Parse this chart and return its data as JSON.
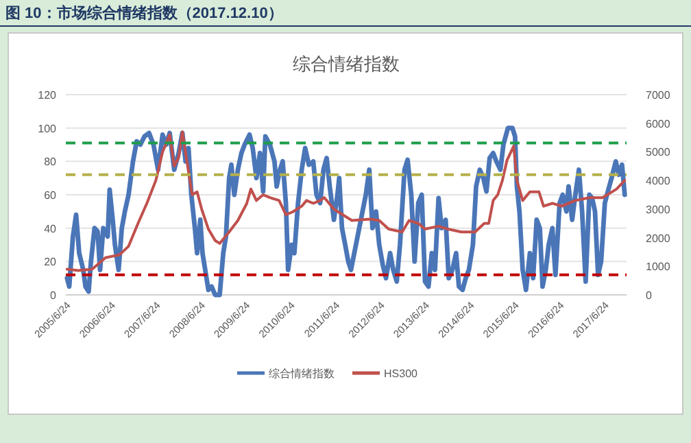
{
  "chart_data": {
    "type": "line",
    "title": "图 10：市场综合情绪指数（2017.12.10）",
    "subtitle": "综合情绪指数",
    "xlim": [
      "2005-06-14",
      "2017-12-14"
    ],
    "xticks": [
      {
        "value": "2005-06-24",
        "label": "2005/6/24"
      },
      {
        "value": "2006-06-24",
        "label": "2006/6/24"
      },
      {
        "value": "2007-06-24",
        "label": "2007/6/24"
      },
      {
        "value": "2008-06-24",
        "label": "2008/6/24"
      },
      {
        "value": "2009-06-24",
        "label": "2009/6/24"
      },
      {
        "value": "2010-06-24",
        "label": "2010/6/24"
      },
      {
        "value": "2011-06-24",
        "label": "2011/6/24"
      },
      {
        "value": "2012-06-24",
        "label": "2012/6/24"
      },
      {
        "value": "2013-06-24",
        "label": "2013/6/24"
      },
      {
        "value": "2014-06-24",
        "label": "2014/6/24"
      },
      {
        "value": "2015-06-24",
        "label": "2015/6/24"
      },
      {
        "value": "2016-06-24",
        "label": "2016/6/24"
      },
      {
        "value": "2017-06-24",
        "label": "2017/6/24"
      }
    ],
    "ylim": [
      0,
      120
    ],
    "yticks": [
      0,
      20,
      40,
      60,
      80,
      100,
      120
    ],
    "y2lim": [
      0,
      7000
    ],
    "y2ticks": [
      0,
      1000,
      2000,
      3000,
      4000,
      5000,
      6000,
      7000
    ],
    "grid": "y",
    "legend": "bottom",
    "ref_lines": [
      {
        "axis": "y",
        "value": 91,
        "color": "#1e9e4a",
        "line_style": "dashed"
      },
      {
        "axis": "y",
        "value": 72,
        "color": "#b5b04a",
        "line_style": "dashed"
      },
      {
        "axis": "y",
        "value": 12,
        "color": "#c00000",
        "line_style": "dashed"
      }
    ],
    "series": [
      {
        "name": "综合情绪指数",
        "color": "#4a76b8",
        "axis": "y",
        "x": [
          "2005-06-24",
          "2005-07-12",
          "2005-08-11",
          "2005-09-06",
          "2005-10-01",
          "2005-11-03",
          "2005-11-21",
          "2005-12-17",
          "2006-01-05",
          "2006-02-03",
          "2006-02-28",
          "2006-03-20",
          "2006-04-15",
          "2006-05-21",
          "2006-06-06",
          "2006-07-01",
          "2006-07-19",
          "2006-08-18",
          "2006-09-13",
          "2006-10-08",
          "2006-11-07",
          "2006-12-13",
          "2007-01-12",
          "2007-02-11",
          "2007-03-17",
          "2007-04-23",
          "2007-05-29",
          "2007-07-05",
          "2007-08-11",
          "2007-09-09",
          "2007-10-08",
          "2007-11-14",
          "2007-12-20",
          "2008-01-19",
          "2008-02-14",
          "2008-03-09",
          "2008-04-01",
          "2008-04-30",
          "2008-05-18",
          "2008-06-13",
          "2008-07-01",
          "2008-07-23",
          "2008-08-18",
          "2008-09-13",
          "2008-10-12",
          "2008-11-18",
          "2008-12-17",
          "2009-01-08",
          "2009-02-03",
          "2009-02-21",
          "2009-03-17",
          "2009-04-15",
          "2009-05-14",
          "2009-06-09",
          "2009-07-19",
          "2009-08-14",
          "2009-09-13",
          "2009-10-12",
          "2009-11-07",
          "2009-11-25",
          "2010-01-01",
          "2010-02-07",
          "2010-02-25",
          "2010-03-24",
          "2010-04-15",
          "2010-05-11",
          "2010-05-29",
          "2010-06-27",
          "2010-07-19",
          "2010-08-18",
          "2010-09-17",
          "2010-10-15",
          "2010-11-14",
          "2010-12-20",
          "2011-01-15",
          "2011-02-14",
          "2011-03-13",
          "2011-04-08",
          "2011-05-03",
          "2011-06-06",
          "2011-07-05",
          "2011-07-19",
          "2011-08-11",
          "2011-09-06",
          "2011-10-01",
          "2011-10-23",
          "2012-02-21",
          "2012-03-20",
          "2012-04-15",
          "2012-05-14",
          "2012-06-09",
          "2012-07-08",
          "2012-08-03",
          "2012-09-06",
          "2012-10-01",
          "2012-10-30",
          "2012-11-25",
          "2013-01-01",
          "2013-01-26",
          "2013-02-25",
          "2013-03-24",
          "2013-04-23",
          "2013-05-21",
          "2013-06-17",
          "2013-07-15",
          "2013-08-11",
          "2013-09-06",
          "2013-10-05",
          "2013-10-30",
          "2013-12-02",
          "2013-12-27",
          "2014-01-26",
          "2014-02-25",
          "2014-03-20",
          "2014-04-19",
          "2014-05-14",
          "2014-06-09",
          "2014-07-12",
          "2014-08-07",
          "2014-09-06",
          "2014-10-05",
          "2014-10-30",
          "2014-11-25",
          "2014-12-24",
          "2015-01-19",
          "2015-02-21",
          "2015-03-17",
          "2015-04-23",
          "2015-05-29",
          "2015-06-20",
          "2015-07-05",
          "2015-07-26",
          "2015-08-21",
          "2015-09-17",
          "2015-10-19",
          "2015-11-14",
          "2015-12-13",
          "2016-01-08",
          "2016-01-30",
          "2016-02-25",
          "2016-03-20",
          "2016-04-19",
          "2016-05-14",
          "2016-06-17",
          "2016-07-12",
          "2016-08-11",
          "2016-08-29",
          "2016-09-27",
          "2016-10-23",
          "2016-11-21",
          "2016-12-17",
          "2017-01-15",
          "2017-02-14",
          "2017-03-09",
          "2017-04-01",
          "2017-04-26",
          "2017-05-21",
          "2017-06-20",
          "2017-07-15",
          "2017-08-14",
          "2017-09-17",
          "2017-10-12",
          "2017-11-07",
          "2017-11-29"
        ],
        "values": [
          10,
          5,
          35,
          48,
          25,
          15,
          5,
          2,
          20,
          40,
          38,
          15,
          40,
          35,
          63,
          45,
          30,
          15,
          40,
          50,
          60,
          80,
          92,
          90,
          95,
          97,
          90,
          75,
          96,
          90,
          97,
          75,
          85,
          97,
          80,
          88,
          60,
          40,
          25,
          45,
          25,
          15,
          3,
          5,
          0,
          0,
          25,
          35,
          70,
          78,
          60,
          75,
          85,
          90,
          96,
          88,
          70,
          85,
          62,
          95,
          90,
          80,
          65,
          75,
          80,
          55,
          15,
          30,
          25,
          55,
          75,
          88,
          78,
          80,
          60,
          55,
          75,
          82,
          65,
          45,
          60,
          70,
          40,
          30,
          20,
          15,
          60,
          75,
          40,
          50,
          30,
          18,
          10,
          25,
          15,
          8,
          30,
          75,
          81,
          60,
          20,
          55,
          60,
          8,
          5,
          25,
          15,
          58,
          40,
          45,
          10,
          15,
          25,
          5,
          3,
          10,
          15,
          30,
          65,
          75,
          70,
          62,
          82,
          85,
          80,
          75,
          90,
          100,
          100,
          95,
          65,
          50,
          15,
          3,
          25,
          10,
          45,
          40,
          5,
          15,
          30,
          40,
          12,
          55,
          60,
          50,
          65,
          45,
          60,
          75,
          50,
          8,
          60,
          58,
          50,
          12,
          20,
          55,
          62,
          70,
          80,
          72,
          78,
          60
        ]
      },
      {
        "name": "HS300",
        "color": "#c0504d",
        "axis": "y2",
        "x": [
          "2005-06-24",
          "2005-09-24",
          "2006-01-15",
          "2006-05-03",
          "2006-08-25",
          "2006-11-07",
          "2007-01-23",
          "2007-04-05",
          "2007-06-17",
          "2007-08-11",
          "2007-10-08",
          "2007-11-14",
          "2007-12-20",
          "2008-01-19",
          "2008-03-02",
          "2008-04-08",
          "2008-05-18",
          "2008-06-24",
          "2008-08-18",
          "2008-10-12",
          "2008-11-18",
          "2009-02-03",
          "2009-04-15",
          "2009-06-27",
          "2009-07-30",
          "2009-09-13",
          "2009-11-07",
          "2010-01-01",
          "2010-03-17",
          "2010-05-11",
          "2010-07-05",
          "2010-09-17",
          "2010-10-26",
          "2010-12-20",
          "2011-02-14",
          "2011-03-20",
          "2011-06-06",
          "2011-08-18",
          "2011-10-30",
          "2012-03-27",
          "2012-06-09",
          "2012-08-25",
          "2012-12-13",
          "2013-02-07",
          "2013-04-23",
          "2013-06-17",
          "2013-10-05",
          "2013-12-20",
          "2014-04-08",
          "2014-07-30",
          "2014-10-12",
          "2014-11-18",
          "2014-12-24",
          "2015-01-30",
          "2015-03-09",
          "2015-04-15",
          "2015-06-09",
          "2015-07-05",
          "2015-08-21",
          "2015-10-19",
          "2016-01-01",
          "2016-02-07",
          "2016-04-19",
          "2016-07-05",
          "2016-10-23",
          "2017-02-14",
          "2017-06-02",
          "2017-09-24",
          "2017-11-29"
        ],
        "values": [
          900,
          850,
          900,
          1300,
          1400,
          1700,
          2500,
          3200,
          4000,
          5000,
          5600,
          4500,
          4800,
          5700,
          4500,
          3500,
          3600,
          3000,
          2300,
          1900,
          1800,
          2200,
          2600,
          3200,
          3700,
          3300,
          3500,
          3400,
          3300,
          2800,
          2900,
          3100,
          3300,
          3200,
          3300,
          3400,
          3000,
          2800,
          2600,
          2650,
          2600,
          2300,
          2200,
          2600,
          2500,
          2300,
          2400,
          2300,
          2200,
          2200,
          2500,
          2500,
          3300,
          3500,
          4000,
          4700,
          5200,
          4000,
          3300,
          3600,
          3600,
          3100,
          3200,
          3100,
          3300,
          3400,
          3400,
          3700,
          4000
        ]
      }
    ]
  }
}
